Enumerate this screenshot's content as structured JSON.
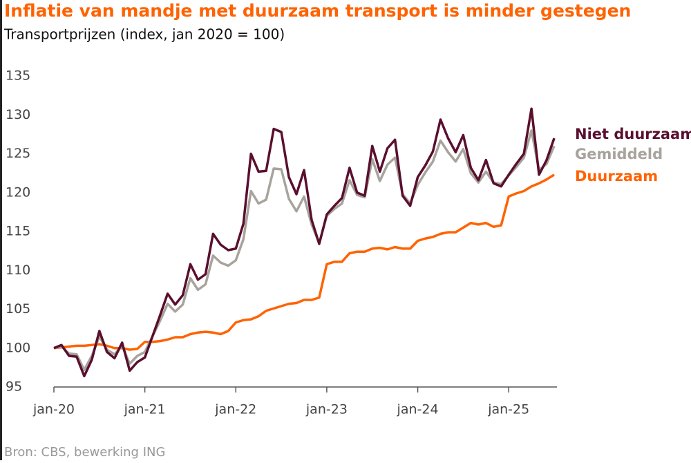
{
  "chart_data": {
    "type": "line",
    "title": "Inflatie van mandje met duurzaam transport is minder gestegen",
    "subtitle": "Transportprijzen (index, jan 2020 = 100)",
    "source": "Bron: CBS, bewerking ING",
    "categories": [
      "jan-20",
      null,
      null,
      null,
      null,
      null,
      null,
      null,
      null,
      null,
      null,
      null,
      "jan-21",
      null,
      null,
      null,
      null,
      null,
      null,
      null,
      null,
      null,
      null,
      null,
      "jan-22",
      null,
      null,
      null,
      null,
      null,
      null,
      null,
      null,
      null,
      null,
      null,
      "jan-23",
      null,
      null,
      null,
      null,
      null,
      null,
      null,
      null,
      null,
      null,
      null,
      "jan-24",
      null,
      null,
      null,
      null,
      null,
      null,
      null,
      null,
      null,
      null,
      null,
      "jan-25",
      null,
      null,
      null,
      null,
      null,
      null
    ],
    "ylim": [
      95,
      136
    ],
    "yticks": [
      95,
      100,
      105,
      110,
      115,
      120,
      125,
      130,
      135
    ],
    "series": [
      {
        "name": "Niet duurzaam",
        "color": "#5a0f2e",
        "values": [
          100,
          100.4,
          99,
          98.9,
          96.4,
          98.5,
          102.2,
          99.5,
          98.7,
          100.7,
          97.1,
          98.2,
          98.8,
          101.5,
          104.2,
          107,
          105.6,
          106.8,
          110.8,
          108.8,
          109.5,
          114.7,
          113.3,
          112.6,
          112.8,
          116,
          125,
          122.7,
          122.8,
          128.2,
          127.8,
          122,
          119.8,
          122.9,
          116.5,
          113.4,
          117.2,
          118.3,
          119.3,
          123.2,
          120,
          119.6,
          126,
          122.7,
          125.7,
          126.8,
          119.6,
          118.3,
          122,
          123.5,
          125.3,
          129.4,
          127,
          125.2,
          127.4,
          123.2,
          121.6,
          124.2,
          121.2,
          120.8,
          122.3,
          123.7,
          125,
          130.8,
          122.3,
          124.2,
          127
        ]
      },
      {
        "name": "Gemiddeld",
        "color": "#a8a39c",
        "values": [
          100,
          100.2,
          99.3,
          99.2,
          97.2,
          99,
          101.5,
          99.8,
          99.2,
          100.3,
          98,
          99,
          99.5,
          101.5,
          103.5,
          105.7,
          104.7,
          105.6,
          109,
          107.5,
          108.2,
          111.9,
          111,
          110.6,
          111.3,
          114,
          120.2,
          118.6,
          119.1,
          123.1,
          123,
          119.2,
          117.6,
          119.5,
          115.9,
          113.5,
          117,
          117.9,
          118.6,
          121.6,
          119.7,
          119.4,
          124.3,
          121.5,
          123.6,
          124.5,
          119.8,
          118.6,
          121,
          122.6,
          124,
          126.7,
          125.2,
          124,
          125.6,
          122.5,
          121.3,
          122.7,
          121.3,
          121.1,
          122.2,
          123.3,
          124.5,
          128,
          122.9,
          123.7,
          126
        ]
      },
      {
        "name": "Duurzaam",
        "color": "#ff6200",
        "values": [
          100,
          100.1,
          100.2,
          100.3,
          100.3,
          100.4,
          100.5,
          100.3,
          100,
          100,
          99.8,
          99.9,
          100.8,
          100.8,
          100.9,
          101.1,
          101.4,
          101.4,
          101.8,
          102,
          102.1,
          102,
          101.8,
          102.2,
          103.3,
          103.6,
          103.7,
          104.1,
          104.8,
          105.1,
          105.4,
          105.7,
          105.8,
          106.2,
          106.2,
          106.5,
          110.8,
          111.1,
          111.1,
          112.2,
          112.4,
          112.4,
          112.8,
          112.9,
          112.7,
          113,
          112.8,
          112.8,
          113.8,
          114.1,
          114.3,
          114.7,
          114.9,
          114.9,
          115.5,
          116.1,
          115.9,
          116.1,
          115.6,
          115.8,
          119.5,
          119.9,
          120.2,
          120.8,
          121.2,
          121.7,
          122.3
        ]
      }
    ]
  }
}
